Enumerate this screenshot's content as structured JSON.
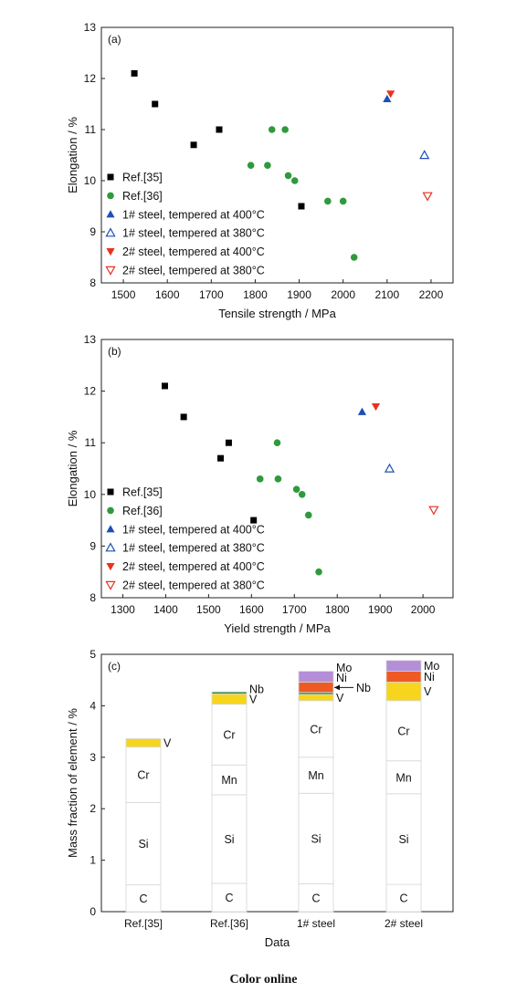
{
  "caption": "Color online",
  "chart_data": [
    {
      "type": "scatter",
      "panel_label": "(a)",
      "xlabel": "Tensile strength / MPa",
      "ylabel": "Elongation / %",
      "xlim": [
        1450,
        2250
      ],
      "ylim": [
        8,
        13
      ],
      "xticks": [
        1500,
        1600,
        1700,
        1800,
        1900,
        2000,
        2100,
        2200
      ],
      "yticks": [
        8,
        9,
        10,
        11,
        12,
        13
      ],
      "grid": false,
      "legend_position": "bottom-left",
      "series": [
        {
          "name": "Ref.[35]",
          "marker": "square",
          "color": "#000000",
          "filled": true,
          "points": [
            [
              1525,
              12.1
            ],
            [
              1572,
              11.5
            ],
            [
              1660,
              10.7
            ],
            [
              1718,
              11.0
            ],
            [
              1905,
              9.5
            ]
          ]
        },
        {
          "name": "Ref.[36]",
          "marker": "circle",
          "color": "#2e9a3c",
          "filled": true,
          "points": [
            [
              1790,
              10.3
            ],
            [
              1828,
              10.3
            ],
            [
              1838,
              11.0
            ],
            [
              1868,
              11.0
            ],
            [
              1875,
              10.1
            ],
            [
              1890,
              10.0
            ],
            [
              1965,
              9.6
            ],
            [
              2000,
              9.6
            ],
            [
              2025,
              8.5
            ]
          ]
        },
        {
          "name": "1# steel, tempered at 400°C",
          "marker": "triangle-up",
          "color": "#1f4fb5",
          "filled": true,
          "points": [
            [
              2100,
              11.6
            ]
          ]
        },
        {
          "name": "1# steel, tempered at 380°C",
          "marker": "triangle-up",
          "color": "#1f4fb5",
          "filled": false,
          "points": [
            [
              2185,
              10.5
            ]
          ]
        },
        {
          "name": "2# steel, tempered at 400°C",
          "marker": "triangle-down",
          "color": "#e8321e",
          "filled": true,
          "points": [
            [
              2108,
              11.7
            ]
          ]
        },
        {
          "name": "2# steel, tempered at 380°C",
          "marker": "triangle-down",
          "color": "#e8321e",
          "filled": false,
          "points": [
            [
              2192,
              9.7
            ]
          ]
        }
      ]
    },
    {
      "type": "scatter",
      "panel_label": "(b)",
      "xlabel": "Yield strength / MPa",
      "ylabel": "Elongation / %",
      "xlim": [
        1250,
        2070
      ],
      "ylim": [
        8,
        13
      ],
      "xticks": [
        1300,
        1400,
        1500,
        1600,
        1700,
        1800,
        1900,
        2000
      ],
      "yticks": [
        8,
        9,
        10,
        11,
        12,
        13
      ],
      "grid": false,
      "legend_position": "bottom-left",
      "series": [
        {
          "name": "Ref.[35]",
          "marker": "square",
          "color": "#000000",
          "filled": true,
          "points": [
            [
              1398,
              12.1
            ],
            [
              1442,
              11.5
            ],
            [
              1528,
              10.7
            ],
            [
              1547,
              11.0
            ],
            [
              1605,
              9.5
            ]
          ]
        },
        {
          "name": "Ref.[36]",
          "marker": "circle",
          "color": "#2e9a3c",
          "filled": true,
          "points": [
            [
              1620,
              10.3
            ],
            [
              1662,
              10.3
            ],
            [
              1660,
              11.0
            ],
            [
              1705,
              10.1
            ],
            [
              1718,
              10.0
            ],
            [
              1733,
              9.6
            ],
            [
              1757,
              8.5
            ]
          ]
        },
        {
          "name": "1# steel, tempered at 400°C",
          "marker": "triangle-up",
          "color": "#1f4fb5",
          "filled": true,
          "points": [
            [
              1858,
              11.6
            ]
          ]
        },
        {
          "name": "1# steel, tempered at 380°C",
          "marker": "triangle-up",
          "color": "#1f4fb5",
          "filled": false,
          "points": [
            [
              1922,
              10.5
            ]
          ]
        },
        {
          "name": "2# steel, tempered at 400°C",
          "marker": "triangle-down",
          "color": "#e8321e",
          "filled": true,
          "points": [
            [
              1890,
              11.7
            ]
          ]
        },
        {
          "name": "2# steel, tempered at 380°C",
          "marker": "triangle-down",
          "color": "#e8321e",
          "filled": false,
          "points": [
            [
              2025,
              9.7
            ]
          ]
        }
      ]
    },
    {
      "type": "bar",
      "stacked": true,
      "panel_label": "(c)",
      "xlabel": "Data",
      "ylabel": "Mass fraction of element / %",
      "ylim": [
        0,
        5
      ],
      "yticks": [
        0,
        1,
        2,
        3,
        4,
        5
      ],
      "categories": [
        "Ref.[35]",
        "Ref.[36]",
        "1# steel",
        "2# steel"
      ],
      "element_colors": {
        "C": "#ffffff",
        "Si": "#ffffff",
        "Mn": "#ffffff",
        "Cr": "#ffffff",
        "V": "#f7d51d",
        "Nb": "#2f8f4e",
        "Ni": "#ee5a24",
        "Mo": "#b48ed6"
      },
      "stacks": [
        [
          {
            "element": "C",
            "value": 0.52
          },
          {
            "element": "Si",
            "value": 1.6
          },
          {
            "element": "Cr",
            "value": 1.08
          },
          {
            "element": "V",
            "value": 0.16
          }
        ],
        [
          {
            "element": "C",
            "value": 0.55
          },
          {
            "element": "Si",
            "value": 1.72
          },
          {
            "element": "Mn",
            "value": 0.58
          },
          {
            "element": "Cr",
            "value": 1.18
          },
          {
            "element": "V",
            "value": 0.2
          },
          {
            "element": "Nb",
            "value": 0.04
          }
        ],
        [
          {
            "element": "C",
            "value": 0.54
          },
          {
            "element": "Si",
            "value": 1.76
          },
          {
            "element": "Mn",
            "value": 0.7
          },
          {
            "element": "Cr",
            "value": 1.1
          },
          {
            "element": "V",
            "value": 0.12
          },
          {
            "element": "Nb",
            "value": 0.04
          },
          {
            "element": "Ni",
            "value": 0.2
          },
          {
            "element": "Mo",
            "value": 0.21
          }
        ],
        [
          {
            "element": "C",
            "value": 0.53
          },
          {
            "element": "Si",
            "value": 1.76
          },
          {
            "element": "Mn",
            "value": 0.64
          },
          {
            "element": "Cr",
            "value": 1.17
          },
          {
            "element": "V",
            "value": 0.36
          },
          {
            "element": "Ni",
            "value": 0.21
          },
          {
            "element": "Mo",
            "value": 0.21
          }
        ]
      ]
    }
  ]
}
